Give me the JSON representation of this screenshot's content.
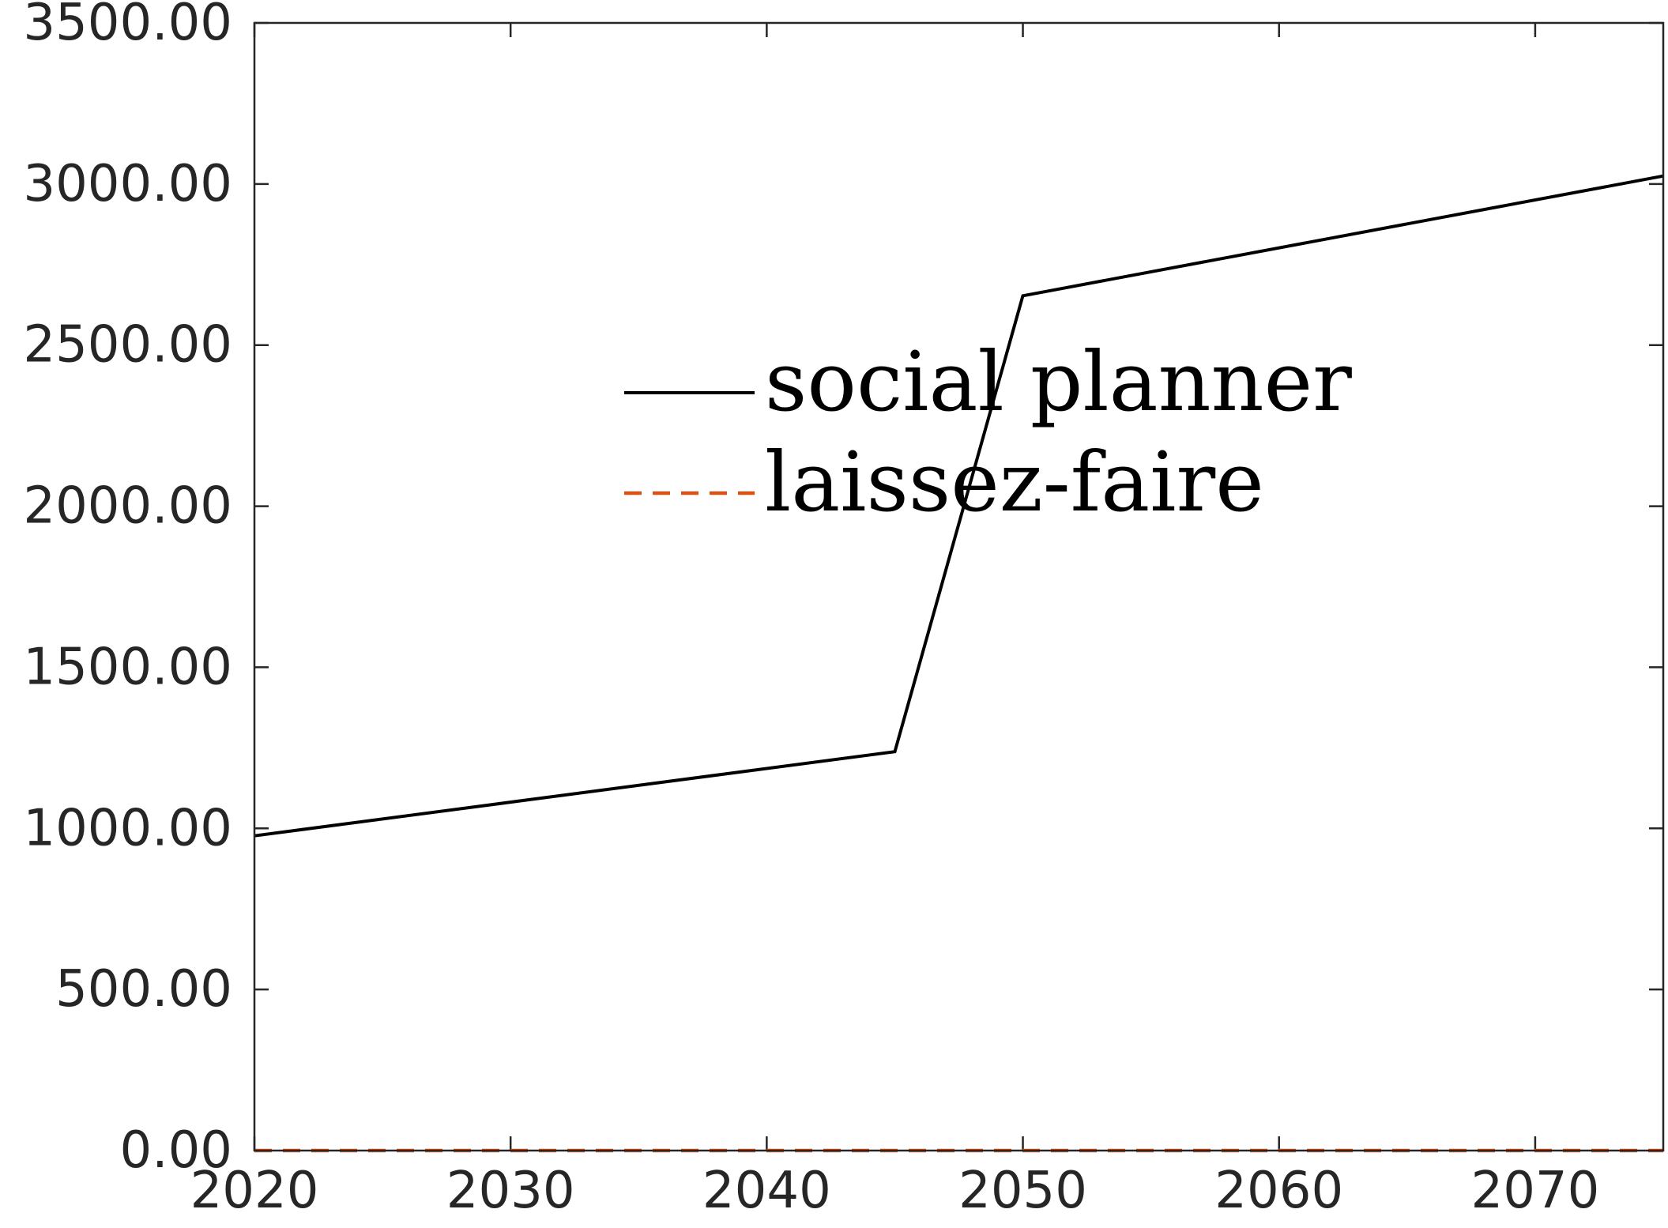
{
  "chart_data": {
    "type": "line",
    "title": "",
    "xlabel": "",
    "ylabel": "",
    "xlim": [
      2020,
      2075
    ],
    "ylim": [
      0,
      3500
    ],
    "grid": false,
    "legend_position": "center",
    "x_ticks": [
      2020,
      2030,
      2040,
      2050,
      2060,
      2070
    ],
    "x_tick_labels": [
      "2020",
      "2030",
      "2040",
      "2050",
      "2060",
      "2070"
    ],
    "y_ticks": [
      0,
      500,
      1000,
      1500,
      2000,
      2500,
      3000,
      3500
    ],
    "y_tick_labels": [
      "0.00",
      "500.00",
      "1000.00",
      "1500.00",
      "2000.00",
      "2500.00",
      "3000.00",
      "3500.00"
    ],
    "series": [
      {
        "name": "social planner",
        "color": "#000000",
        "dash": "solid",
        "x": [
          2020,
          2045,
          2050,
          2075
        ],
        "y": [
          977,
          1238,
          2653,
          3025
        ]
      },
      {
        "name": "laissez-faire",
        "color": "#D95319",
        "dash": "dashed",
        "x": [
          2020,
          2045,
          2050,
          2075
        ],
        "y": [
          0,
          0,
          0,
          0
        ]
      }
    ]
  }
}
